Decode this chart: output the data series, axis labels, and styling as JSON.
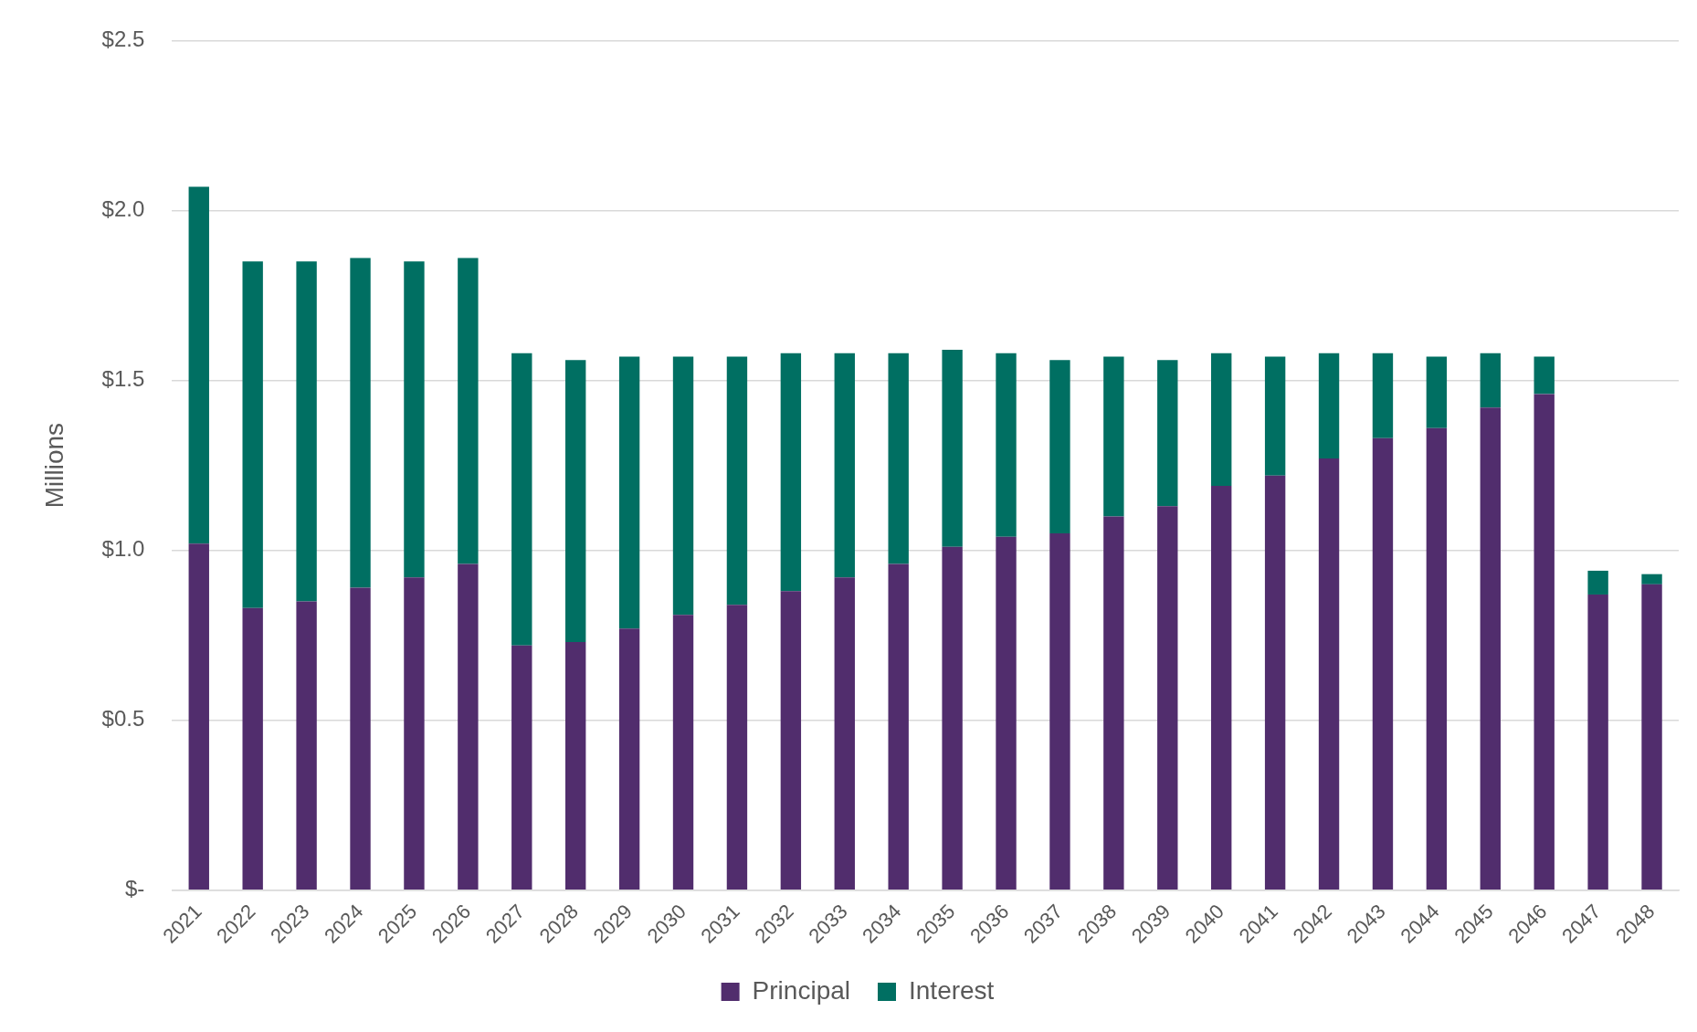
{
  "chart_data": {
    "type": "bar",
    "stacked": true,
    "ylabel": "Millions",
    "categories": [
      "2021",
      "2022",
      "2023",
      "2024",
      "2025",
      "2026",
      "2027",
      "2028",
      "2029",
      "2030",
      "2031",
      "2032",
      "2033",
      "2034",
      "2035",
      "2036",
      "2037",
      "2038",
      "2039",
      "2040",
      "2041",
      "2042",
      "2043",
      "2044",
      "2045",
      "2046",
      "2047",
      "2048"
    ],
    "series": [
      {
        "name": "Principal",
        "color": "#512d6d",
        "values": [
          1.02,
          0.83,
          0.85,
          0.89,
          0.92,
          0.96,
          0.72,
          0.73,
          0.77,
          0.81,
          0.84,
          0.88,
          0.92,
          0.96,
          1.01,
          1.04,
          1.05,
          1.1,
          1.13,
          1.19,
          1.22,
          1.27,
          1.33,
          1.36,
          1.42,
          1.46,
          0.87,
          0.9
        ]
      },
      {
        "name": "Interest",
        "color": "#006f62",
        "values": [
          1.05,
          1.02,
          1.0,
          0.97,
          0.93,
          0.9,
          0.86,
          0.83,
          0.8,
          0.76,
          0.73,
          0.7,
          0.66,
          0.62,
          0.58,
          0.54,
          0.51,
          0.47,
          0.43,
          0.39,
          0.35,
          0.31,
          0.25,
          0.21,
          0.16,
          0.11,
          0.07,
          0.03
        ]
      }
    ],
    "ylim": [
      0,
      2.5
    ],
    "yticks": [
      {
        "value": 0,
        "label": "$-"
      },
      {
        "value": 0.5,
        "label": "$0.5"
      },
      {
        "value": 1,
        "label": "$1.0"
      },
      {
        "value": 1.5,
        "label": "$1.5"
      },
      {
        "value": 2,
        "label": "$2.0"
      },
      {
        "value": 2.5,
        "label": "$2.5"
      }
    ],
    "grid": "y",
    "legend": "bottom"
  }
}
